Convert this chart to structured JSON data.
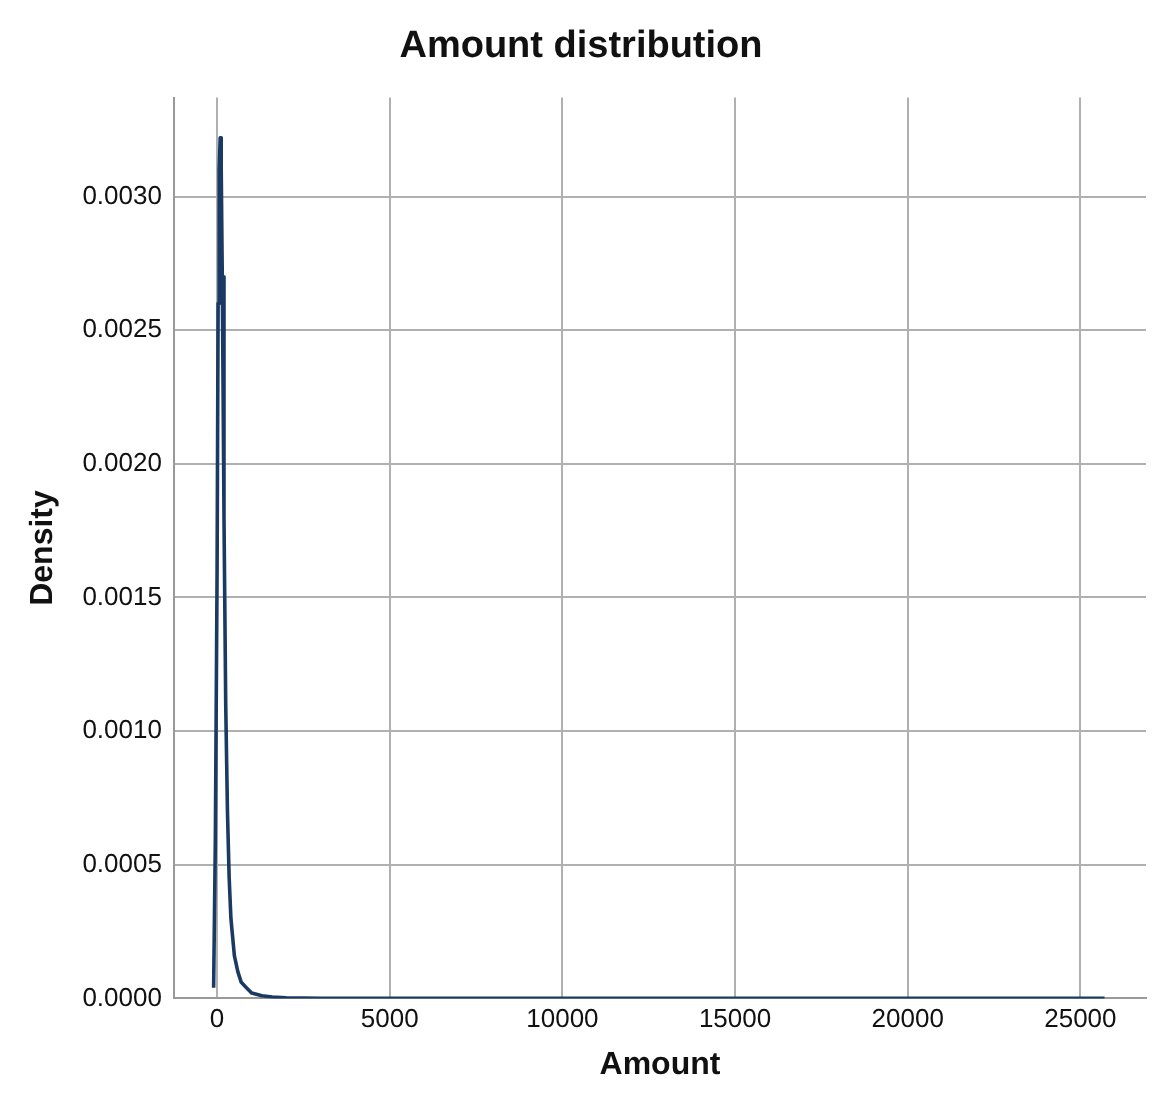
{
  "chart_data": {
    "type": "line",
    "title": "Amount distribution",
    "xlabel": "Amount",
    "ylabel": "Density",
    "x": [
      -100,
      -50,
      0,
      30,
      60,
      90,
      120,
      150,
      200,
      250,
      300,
      350,
      400,
      500,
      600,
      700,
      850,
      1000,
      1300,
      1600,
      2000,
      3000,
      5000,
      8000,
      12000,
      16000,
      20000,
      25700
    ],
    "series": [
      {
        "color": "#1b3a63",
        "values": [
          4e-05,
          0.0006,
          0.0016,
          0.0026,
          0.0031,
          0.00322,
          0.0031,
          0.0027,
          0.0018,
          0.0011,
          0.0007,
          0.00045,
          0.0003,
          0.00016,
          0.0001,
          6e-05,
          4e-05,
          2e-05,
          1e-05,
          5e-06,
          2e-06,
          0,
          0,
          0,
          0,
          0,
          0,
          0
        ]
      }
    ],
    "xlim": [
      -1250,
      26900
    ],
    "ylim": [
      0,
      0.00337
    ],
    "xticks": [
      0,
      5000,
      10000,
      15000,
      20000,
      25000
    ],
    "yticks": [
      {
        "value": 0,
        "label": "0.0000"
      },
      {
        "value": 0.0005,
        "label": "0.0005"
      },
      {
        "value": 0.001,
        "label": "0.0010"
      },
      {
        "value": 0.0015,
        "label": "0.0015"
      },
      {
        "value": 0.002,
        "label": "0.0020"
      },
      {
        "value": 0.0025,
        "label": "0.0025"
      },
      {
        "value": 0.003,
        "label": "0.0030"
      }
    ],
    "grid": true,
    "legend": false,
    "marker": "none",
    "line_style": "solid"
  }
}
